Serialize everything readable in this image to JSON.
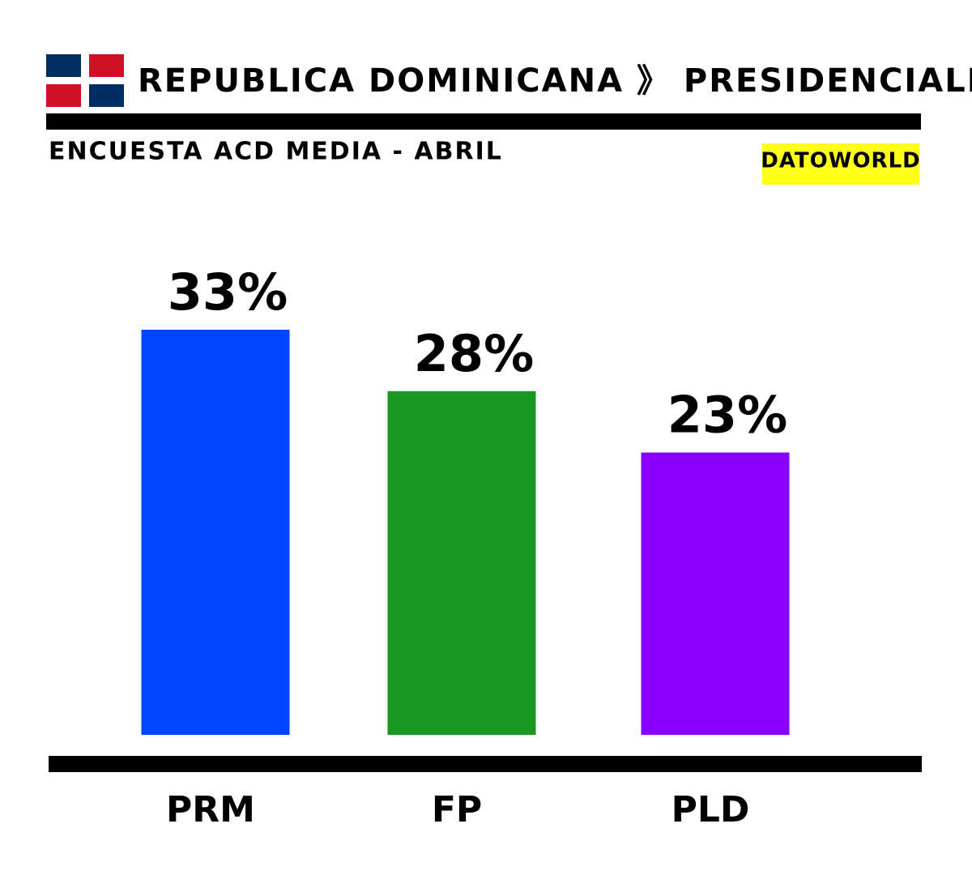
{
  "chart_data": {
    "type": "bar",
    "title": "REPUBLICA DOMINICANA 》 PRESIDENCIALES",
    "subtitle": "ENCUESTA ACD MEDIA - ABRIL",
    "source": "DATOWORLD",
    "categories": [
      "PRM",
      "FP",
      "PLD"
    ],
    "values": [
      33,
      28,
      23
    ],
    "value_labels": [
      "33%",
      "28%",
      "23%"
    ],
    "colors": [
      "#0044ff",
      "#1a9622",
      "#8800ff"
    ]
  }
}
